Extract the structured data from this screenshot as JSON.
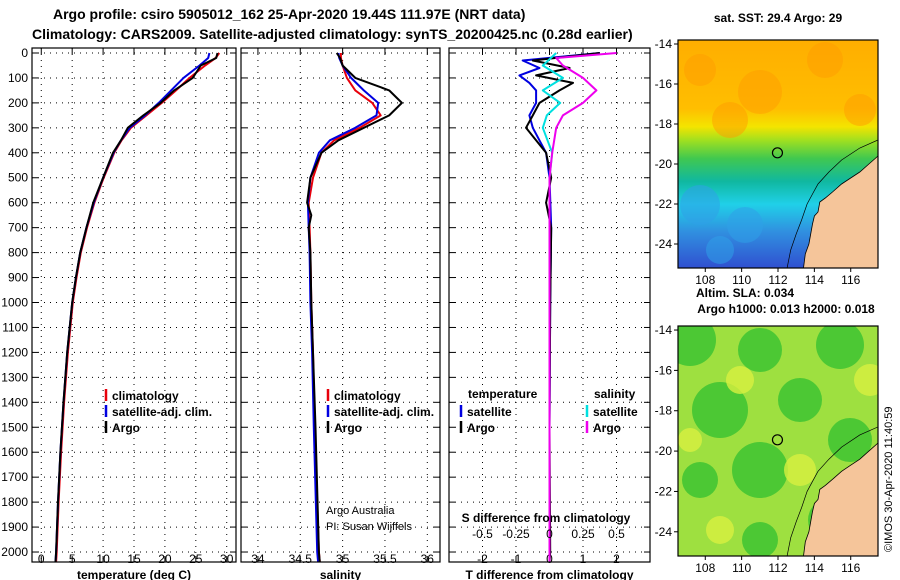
{
  "title": {
    "line1": "Argo profile: csiro 5905012_162 25-Apr-2020 19.44S 111.97E (NRT data)",
    "line2": "Climatology: CARS2009. Satellite-adjusted climatology: synTS_20200425.nc (0.28d earlier)"
  },
  "colors": {
    "red": "#e8000b",
    "blue": "#0000e0",
    "black": "#000000",
    "cyan": "#00e0e0",
    "magenta": "#ee00ee",
    "grid": "#000000"
  },
  "depth_axis": {
    "ticks": [
      0,
      100,
      200,
      300,
      400,
      500,
      600,
      700,
      800,
      900,
      1000,
      1100,
      1200,
      1300,
      1400,
      1500,
      1600,
      1700,
      1800,
      1900,
      2000
    ],
    "labels": [
      "0",
      "100",
      "200",
      "300",
      "400",
      "500",
      "600",
      "700",
      "800",
      "900",
      "1000",
      "1100",
      "1200",
      "1300",
      "1400",
      "1500",
      "1600",
      "1700",
      "1800",
      "1900",
      "2000"
    ],
    "range": [
      -20,
      2040
    ]
  },
  "chart_data": [
    {
      "type": "line",
      "name": "temperature",
      "xlabel": "temperature (deg C)",
      "xlim": [
        -1.5,
        31.5
      ],
      "xticks": [
        0,
        5,
        10,
        15,
        20,
        25,
        30
      ],
      "xtick_labels": [
        "0",
        "5",
        "10",
        "15",
        "20",
        "25",
        "30"
      ],
      "legend": [
        "climatology",
        "satellite-adj. clim.",
        "Argo"
      ],
      "series": [
        {
          "name": "climatology",
          "color": "red",
          "depth": [
            0,
            20,
            50,
            100,
            150,
            200,
            250,
            300,
            350,
            400,
            500,
            600,
            700,
            800,
            900,
            1000,
            1200,
            1400,
            1600,
            1800,
            2000,
            2040
          ],
          "values": [
            28.8,
            28.2,
            26.5,
            24.0,
            21.8,
            19.5,
            17.0,
            14.5,
            13.0,
            11.8,
            10.1,
            8.6,
            7.4,
            6.4,
            5.7,
            5.1,
            4.3,
            3.7,
            3.2,
            2.8,
            2.5,
            2.4
          ]
        },
        {
          "name": "satellite-adj. clim.",
          "color": "blue",
          "depth": [
            0,
            20,
            50,
            100,
            150,
            200,
            250,
            300,
            350,
            400,
            500,
            600,
            700,
            800,
            900,
            1000,
            1200,
            1400,
            1600,
            1800,
            2000,
            2040
          ],
          "values": [
            27.2,
            27.0,
            25.6,
            23.0,
            21.0,
            19.0,
            16.8,
            14.3,
            12.9,
            11.7,
            10.0,
            8.5,
            7.3,
            6.3,
            5.6,
            5.0,
            4.2,
            3.6,
            3.1,
            2.7,
            2.4,
            2.3
          ]
        },
        {
          "name": "Argo",
          "color": "black",
          "depth": [
            0,
            20,
            50,
            100,
            150,
            200,
            250,
            300,
            350,
            400,
            500,
            600,
            700,
            800,
            900,
            1000,
            1200,
            1400,
            1600,
            1800,
            2000,
            2040
          ],
          "values": [
            28.5,
            28.3,
            25.8,
            24.5,
            21.5,
            19.3,
            16.5,
            14.0,
            12.9,
            11.6,
            10.0,
            8.4,
            7.3,
            6.3,
            5.6,
            5.0,
            4.2,
            3.6,
            3.1,
            2.7,
            2.4,
            2.3
          ]
        }
      ]
    },
    {
      "type": "line",
      "name": "salinity",
      "xlabel": "salinity",
      "xlim": [
        33.8,
        36.15
      ],
      "xticks": [
        34,
        34.5,
        35,
        35.5,
        36
      ],
      "xtick_labels": [
        "34",
        "34.5",
        "35",
        "35.5",
        "36"
      ],
      "legend": [
        "climatology",
        "satellite-adj. clim.",
        "Argo"
      ],
      "credit": [
        "Argo Australia",
        "PI: Susan Wijffels"
      ],
      "series": [
        {
          "name": "climatology",
          "color": "red",
          "depth": [
            0,
            20,
            50,
            100,
            150,
            200,
            250,
            300,
            350,
            400,
            500,
            600,
            700,
            800,
            1000,
            1200,
            1500,
            2000,
            2040
          ],
          "values": [
            34.98,
            34.98,
            35.0,
            35.05,
            35.15,
            35.35,
            35.45,
            35.2,
            34.9,
            34.75,
            34.65,
            34.6,
            34.61,
            34.62,
            34.63,
            34.65,
            34.67,
            34.72,
            34.73
          ]
        },
        {
          "name": "satellite-adj. clim.",
          "color": "blue",
          "depth": [
            0,
            20,
            50,
            100,
            150,
            200,
            250,
            300,
            350,
            400,
            500,
            600,
            700,
            800,
            1000,
            1200,
            1500,
            2000,
            2040
          ],
          "values": [
            34.95,
            34.96,
            35.0,
            35.1,
            35.25,
            35.42,
            35.4,
            35.15,
            34.85,
            34.72,
            34.62,
            34.59,
            34.6,
            34.61,
            34.62,
            34.64,
            34.66,
            34.7,
            34.71
          ]
        },
        {
          "name": "Argo",
          "color": "black",
          "depth": [
            0,
            20,
            50,
            100,
            150,
            200,
            250,
            300,
            350,
            400,
            500,
            600,
            650,
            700,
            800,
            1000,
            1200,
            1500,
            2000,
            2040
          ],
          "values": [
            34.93,
            34.97,
            35.0,
            35.15,
            35.55,
            35.7,
            35.55,
            35.25,
            34.95,
            34.75,
            34.62,
            34.58,
            34.63,
            34.6,
            34.62,
            34.63,
            34.65,
            34.68,
            34.72,
            34.73
          ]
        }
      ]
    },
    {
      "type": "line",
      "name": "difference",
      "xlabel": "T difference from climatology",
      "xlabel_top": "S difference from climatology",
      "xlim": [
        -3,
        3
      ],
      "xticks": [
        -2,
        -1,
        0,
        1,
        2
      ],
      "xtick_labels": [
        "-2",
        "-1",
        "0",
        "1",
        "2"
      ],
      "s_xticks": [
        -0.5,
        -0.25,
        0,
        0.25,
        0.5
      ],
      "s_xtick_labels": [
        "-0.5",
        "-0.25",
        "0",
        "0.25",
        "0.5"
      ],
      "legend_left_title": "temperature",
      "legend_right_title": "salinity",
      "legend": [
        "satellite",
        "Argo",
        "satellite",
        "Argo"
      ],
      "series": [
        {
          "name": "T satellite",
          "color": "blue",
          "depth": [
            0,
            30,
            60,
            90,
            120,
            150,
            200,
            250,
            300,
            400,
            500,
            700,
            1000,
            1500,
            2000,
            2040
          ],
          "values": [
            1.5,
            -0.8,
            -0.3,
            -0.9,
            -0.6,
            -0.4,
            -0.4,
            -0.6,
            -0.5,
            -0.1,
            0.0,
            0.05,
            0.02,
            0.0,
            0.0,
            0.0
          ]
        },
        {
          "name": "T Argo",
          "color": "black",
          "depth": [
            0,
            30,
            60,
            90,
            120,
            150,
            200,
            250,
            300,
            400,
            500,
            600,
            700,
            1000,
            1500,
            2000,
            2040
          ],
          "values": [
            1.5,
            -0.5,
            0.6,
            -0.4,
            0.7,
            0.3,
            -0.3,
            -0.5,
            -0.7,
            -0.1,
            0.05,
            -0.1,
            0.05,
            0.02,
            0.0,
            0.02,
            0.0
          ]
        },
        {
          "name": "S satellite",
          "color": "cyan",
          "depth": [
            0,
            50,
            100,
            150,
            200,
            250,
            300,
            400,
            500,
            700,
            1000,
            1500,
            2000,
            2040
          ],
          "values": [
            0.05,
            -0.05,
            0.1,
            -0.05,
            0.08,
            -0.02,
            -0.05,
            0.02,
            0.0,
            0.0,
            0.0,
            0.0,
            0.0,
            0.0
          ]
        },
        {
          "name": "S Argo",
          "color": "magenta",
          "depth": [
            0,
            20,
            50,
            100,
            150,
            200,
            250,
            300,
            400,
            500,
            700,
            1000,
            1500,
            2000,
            2040
          ],
          "values": [
            0.5,
            0.05,
            0.1,
            0.25,
            0.35,
            0.25,
            0.1,
            0.05,
            0.02,
            0.0,
            0.0,
            0.0,
            0.0,
            0.0,
            0.0
          ]
        }
      ]
    }
  ],
  "maps": {
    "top": {
      "title": "sat. SST: 29.4 Argo: 29",
      "bottom_label": "Altim. SLA: 0.034"
    },
    "bottom": {
      "title": "Argo h1000: 0.013 h2000: 0.018"
    },
    "lon": {
      "range": [
        106.5,
        117.5
      ],
      "ticks": [
        108,
        110,
        112,
        114,
        116
      ],
      "labels": [
        "108",
        "110",
        "112",
        "114",
        "116"
      ]
    },
    "lat": {
      "range": [
        -25.2,
        -13.8
      ],
      "ticks": [
        -14,
        -16,
        -18,
        -20,
        -22,
        -24
      ],
      "labels": [
        "-14",
        "-16",
        "-18",
        "-20",
        "-22",
        "-24"
      ]
    },
    "profile_location": {
      "lon": 111.97,
      "lat": -19.44
    }
  },
  "watermark": "©IMOS 30-Apr-2020 11:40:59"
}
